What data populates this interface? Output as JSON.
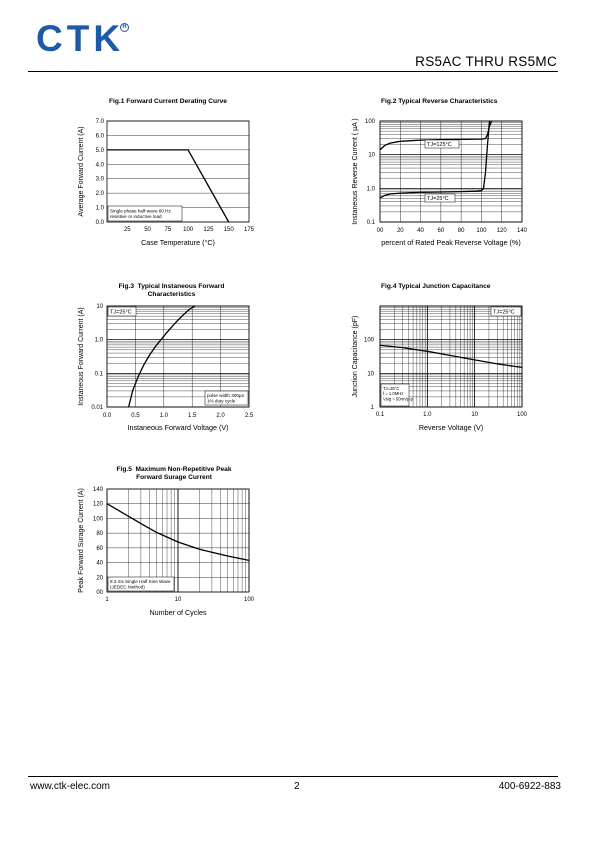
{
  "header": {
    "logo": "CTK",
    "registered": "R",
    "title": "RS5AC  THRU  RS5MC"
  },
  "footer": {
    "website": "www.ctk-elec.com",
    "page": "2",
    "phone": "400-6922-883"
  },
  "colors": {
    "logo": "#1f5aa8",
    "ink": "#000000"
  },
  "chart_data": [
    {
      "id": "fig1",
      "type": "line",
      "title": "Fig.1  Forward Current Derating Curve",
      "xlabel": "Case Temperature (°C)",
      "ylabel": "Average Forward Current (A)",
      "xlim": [
        0,
        175
      ],
      "ylim": [
        0,
        7
      ],
      "x_ticks": [
        "25",
        "50",
        "75",
        "100",
        "125",
        "150",
        "175"
      ],
      "y_ticks": [
        "0.0",
        "1.0",
        "2.0",
        "3.0",
        "4.0",
        "5.0",
        "6.0",
        "7.0"
      ],
      "grid": "horizontal",
      "annotation": "Single phase half-wave 60 Hz\nresistive or inductive load",
      "series": [
        {
          "x": [
            0,
            100,
            150
          ],
          "y": [
            5,
            5,
            0
          ]
        }
      ]
    },
    {
      "id": "fig2",
      "type": "line",
      "title": "Fig.2  Typical Reverse Characteristics",
      "xlabel": "percent of Rated  Peak Reverse Voltage (%)",
      "ylabel": "Instaneous Reverse Current ( µA )",
      "xlim": [
        0,
        140
      ],
      "ylim": [
        0.1,
        100
      ],
      "yscale": "log",
      "x_ticks": [
        "00",
        "20",
        "40",
        "60",
        "80",
        "100",
        "120",
        "140"
      ],
      "y_ticks": [
        "0.1",
        "1.0",
        "10",
        "100"
      ],
      "series": [
        {
          "label": "TJ=125°C",
          "x": [
            0,
            5,
            10,
            20,
            40,
            60,
            80,
            100,
            104,
            106,
            108,
            110
          ],
          "y": [
            14,
            19,
            22,
            25,
            27,
            28,
            28.5,
            29,
            30,
            40,
            70,
            100
          ]
        },
        {
          "label": "TJ=25°C",
          "x": [
            0,
            5,
            10,
            20,
            40,
            60,
            80,
            95,
            100,
            102,
            104,
            106,
            108
          ],
          "y": [
            0.52,
            0.62,
            0.68,
            0.72,
            0.76,
            0.78,
            0.8,
            0.82,
            0.85,
            1.0,
            3,
            20,
            100
          ]
        }
      ]
    },
    {
      "id": "fig3",
      "type": "line",
      "title": "Fig.3  Typical Instaneous Forward\nCharacteristics",
      "xlabel": "Instaneous Forward Voltage (V)",
      "ylabel": "Instaneous Forward Current (A)",
      "xlim": [
        0,
        2.5
      ],
      "ylim": [
        0.01,
        10
      ],
      "yscale": "log",
      "x_ticks": [
        "0.0",
        "0.5",
        "1.0",
        "1.5",
        "2.0",
        "2.5"
      ],
      "y_ticks": [
        "0.01",
        "0.1",
        "1.0",
        "10"
      ],
      "condition": "TJ=25°C",
      "annotation": "pulse width 300µs\n1% duty cycle",
      "series": [
        {
          "x": [
            0.38,
            0.45,
            0.55,
            0.65,
            0.75,
            0.85,
            0.95,
            1.05,
            1.15,
            1.25,
            1.35,
            1.45,
            1.55
          ],
          "y": [
            0.01,
            0.03,
            0.08,
            0.18,
            0.35,
            0.62,
            1.0,
            1.6,
            2.5,
            3.8,
            5.6,
            8.0,
            10
          ]
        }
      ]
    },
    {
      "id": "fig4",
      "type": "line",
      "title": "Fig.4  Typical Junction Capacitance",
      "xlabel": "Reverse  Voltage (V)",
      "ylabel": "Junction Capacitance (pF)",
      "xlim": [
        0.1,
        100
      ],
      "ylim": [
        1,
        1000
      ],
      "xscale": "log",
      "yscale": "log",
      "x_ticks": [
        "0.1",
        "1.0",
        "10",
        "100"
      ],
      "y_ticks": [
        "1",
        "10",
        "100"
      ],
      "condition": "TJ=25°C",
      "annotation": "TJ=25°C\nf = 1.0MHz\nVsig = 50mVp-p",
      "series": [
        {
          "x": [
            0.1,
            0.3,
            1,
            3,
            10,
            30,
            100
          ],
          "y": [
            68,
            58,
            45,
            34,
            25,
            19,
            15
          ]
        }
      ]
    },
    {
      "id": "fig5",
      "type": "line",
      "title": "Fig.5  Maximum Non-Repetitive Peak\nForward Surage Current",
      "xlabel": "Number of Cycles",
      "ylabel": "Peak Forward Surage Current (A)",
      "xlim": [
        1,
        100
      ],
      "ylim": [
        0,
        140
      ],
      "xscale": "log",
      "x_ticks": [
        "1",
        "10",
        "100"
      ],
      "y_ticks": [
        "00",
        "20",
        "40",
        "60",
        "80",
        "100",
        "120",
        "140"
      ],
      "annotation": "8.3 ms Single Half Sine Wave\n(JEDEC Method)",
      "series": [
        {
          "x": [
            1,
            2,
            3,
            5,
            10,
            20,
            30,
            50,
            100
          ],
          "y": [
            120,
            103,
            93,
            81,
            68,
            58,
            54,
            49,
            43
          ]
        }
      ]
    }
  ]
}
